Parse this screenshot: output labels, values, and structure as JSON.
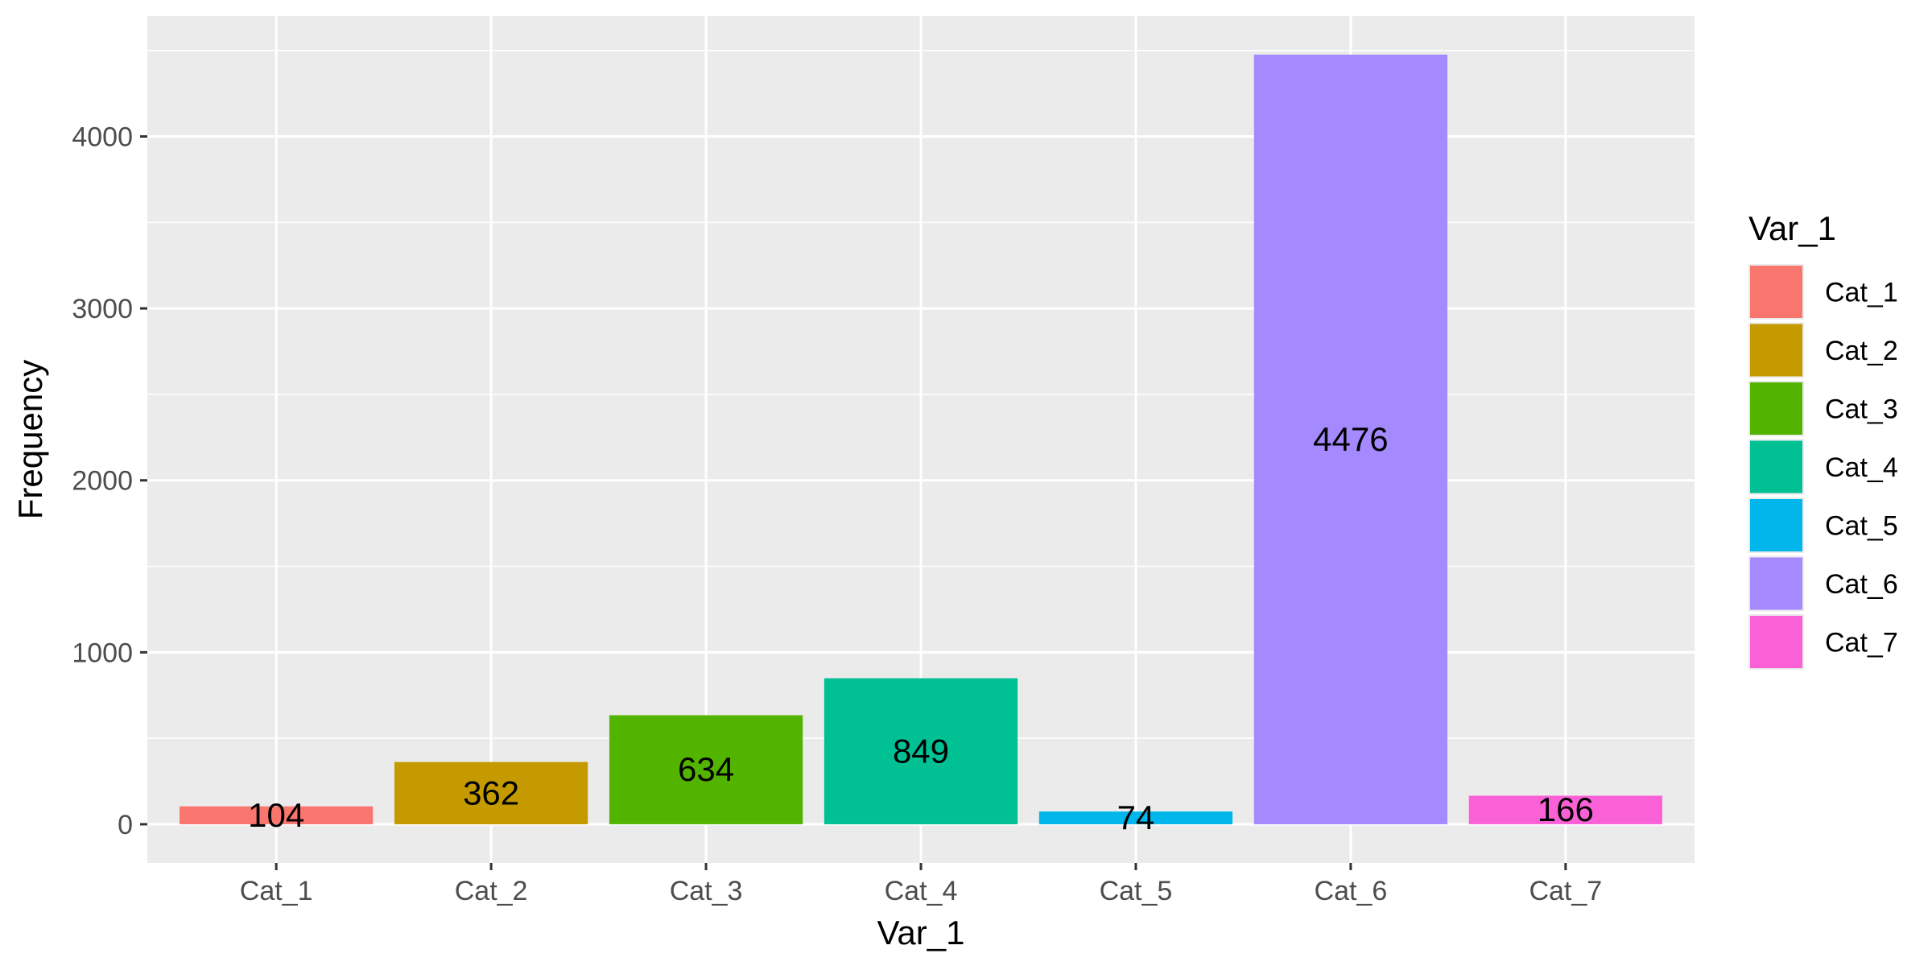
{
  "chart_data": {
    "type": "bar",
    "xlabel": "Var_1",
    "ylabel": "Frequency",
    "categories": [
      "Cat_1",
      "Cat_2",
      "Cat_3",
      "Cat_4",
      "Cat_5",
      "Cat_6",
      "Cat_7"
    ],
    "values": [
      104,
      362,
      634,
      849,
      74,
      4476,
      166
    ],
    "data_labels": [
      "104",
      "362",
      "634",
      "849",
      "74",
      "4476",
      "166"
    ],
    "colors": [
      "#F8766D",
      "#C49A00",
      "#53B400",
      "#00C094",
      "#00B6EB",
      "#A58AFF",
      "#FB61D7"
    ],
    "ylim": [
      -225,
      4700
    ],
    "yticks": [
      0,
      1000,
      2000,
      3000,
      4000
    ],
    "ytick_labels": [
      "0",
      "1000",
      "2000",
      "3000",
      "4000"
    ],
    "yminor": [
      500,
      1500,
      2500,
      3500,
      4500
    ],
    "grid": true,
    "legend": {
      "title": "Var_1",
      "position": "right",
      "entries": [
        "Cat_1",
        "Cat_2",
        "Cat_3",
        "Cat_4",
        "Cat_5",
        "Cat_6",
        "Cat_7"
      ]
    },
    "theme": {
      "panel_bg": "#EBEBEB",
      "grid_color": "#FFFFFF",
      "tick_color": "#4D4D4D",
      "axis_title_color": "#000000"
    }
  }
}
